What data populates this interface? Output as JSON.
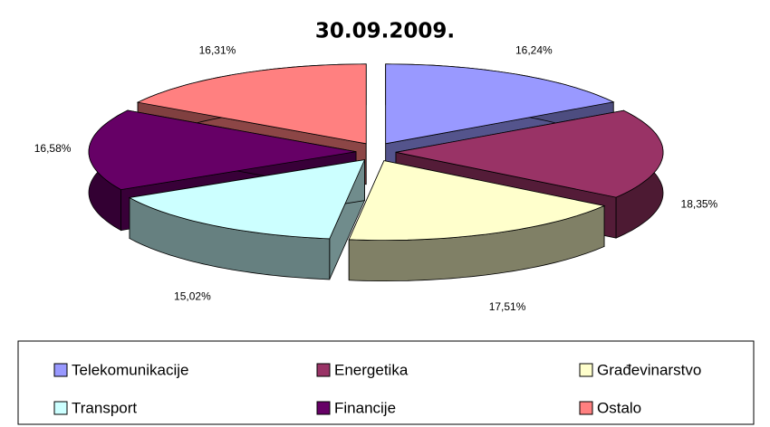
{
  "chart_data": {
    "type": "pie",
    "title": "30.09.2009.",
    "categories": [
      "Telekomunikacije",
      "Energetika",
      "Građevinarstvo",
      "Transport",
      "Financije",
      "Ostalo"
    ],
    "values": [
      16.24,
      18.35,
      17.51,
      15.02,
      16.58,
      16.31
    ],
    "value_labels": [
      "16,24%",
      "18,35%",
      "17,51%",
      "15,02%",
      "16,58%",
      "16,31%"
    ],
    "colors": [
      "#9999ff",
      "#993366",
      "#ffffcc",
      "#ccffff",
      "#660066",
      "#ff8080"
    ],
    "legend": "bottom"
  }
}
